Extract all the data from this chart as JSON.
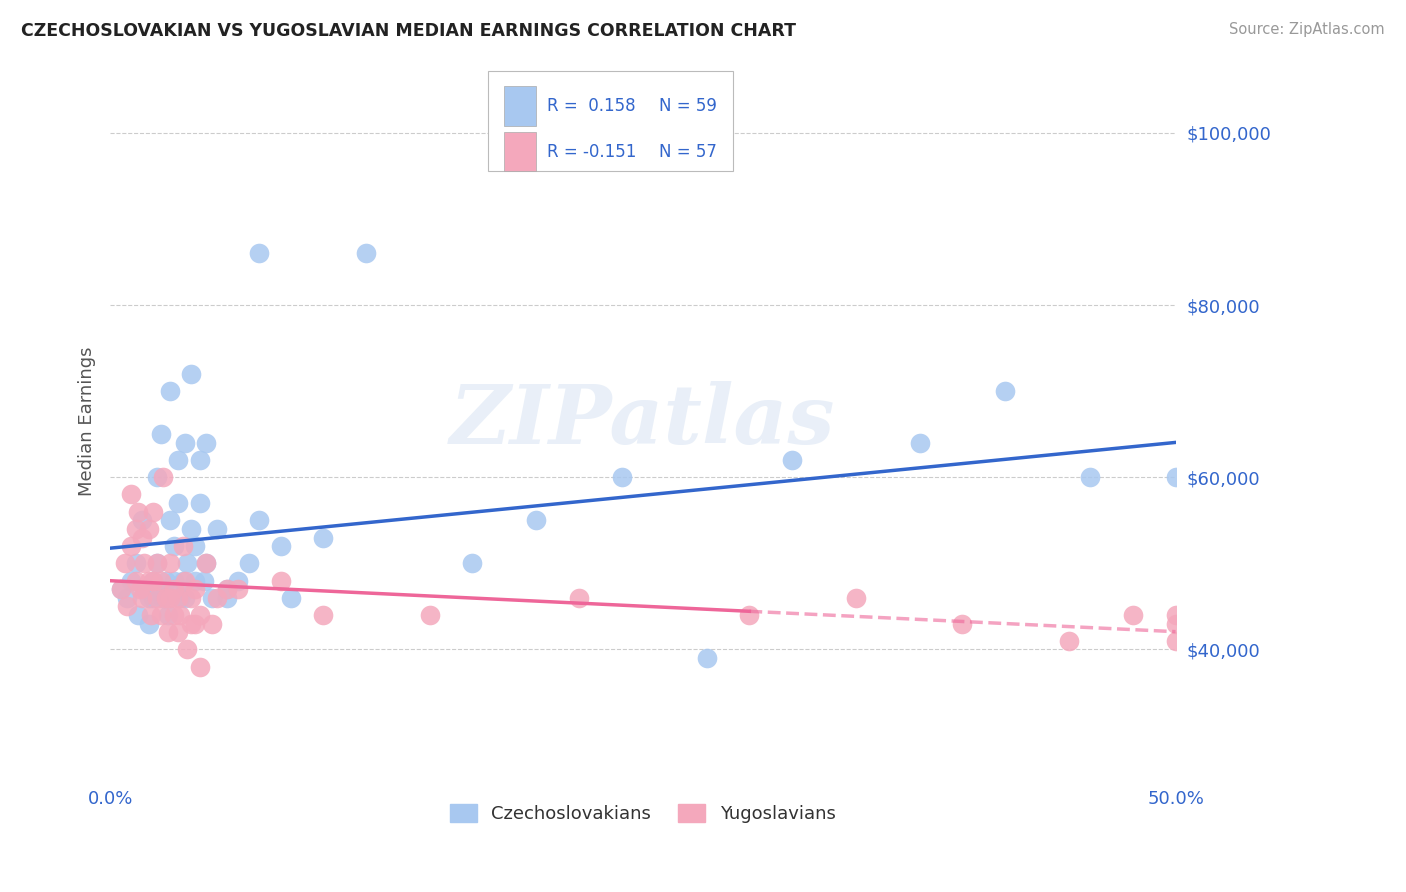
{
  "title": "CZECHOSLOVAKIAN VS YUGOSLAVIAN MEDIAN EARNINGS CORRELATION CHART",
  "source_text": "Source: ZipAtlas.com",
  "ylabel": "Median Earnings",
  "xlim": [
    0.0,
    0.5
  ],
  "ylim": [
    25000,
    108000
  ],
  "ytick_values": [
    40000,
    60000,
    80000,
    100000
  ],
  "ytick_labels": [
    "$40,000",
    "$60,000",
    "$80,000",
    "$100,000"
  ],
  "background_color": "#ffffff",
  "grid_color": "#cccccc",
  "watermark_text": "ZIPatlas",
  "legend_r1": "R =  0.158",
  "legend_n1": "N = 59",
  "legend_r2": "R = -0.151",
  "legend_n2": "N = 57",
  "legend_label1": "Czechoslovakians",
  "legend_label2": "Yugoslavians",
  "color_czech": "#a8c8f0",
  "color_yugo": "#f4a8bc",
  "color_trend_czech": "#3366cc",
  "color_trend_yugo": "#ee6699",
  "title_color": "#222222",
  "axis_label_color": "#555555",
  "tick_color_blue": "#3366cc",
  "source_color": "#999999",
  "czech_x": [
    0.005,
    0.008,
    0.01,
    0.012,
    0.013,
    0.015,
    0.016,
    0.018,
    0.018,
    0.02,
    0.02,
    0.022,
    0.022,
    0.023,
    0.024,
    0.025,
    0.026,
    0.027,
    0.028,
    0.028,
    0.03,
    0.03,
    0.032,
    0.032,
    0.033,
    0.034,
    0.035,
    0.035,
    0.036,
    0.038,
    0.038,
    0.04,
    0.04,
    0.042,
    0.042,
    0.044,
    0.045,
    0.045,
    0.048,
    0.05,
    0.055,
    0.055,
    0.06,
    0.065,
    0.07,
    0.07,
    0.08,
    0.085,
    0.1,
    0.12,
    0.17,
    0.2,
    0.24,
    0.28,
    0.32,
    0.38,
    0.42,
    0.46,
    0.5
  ],
  "czech_y": [
    47000,
    46000,
    48000,
    50000,
    44000,
    55000,
    47000,
    46000,
    43000,
    48000,
    46000,
    50000,
    60000,
    47000,
    65000,
    46000,
    48000,
    44000,
    70000,
    55000,
    52000,
    48000,
    62000,
    57000,
    46000,
    48000,
    64000,
    46000,
    50000,
    72000,
    54000,
    52000,
    48000,
    62000,
    57000,
    48000,
    64000,
    50000,
    46000,
    54000,
    46000,
    47000,
    48000,
    50000,
    55000,
    86000,
    52000,
    46000,
    53000,
    86000,
    50000,
    55000,
    60000,
    39000,
    62000,
    64000,
    70000,
    60000,
    60000
  ],
  "yugo_x": [
    0.005,
    0.007,
    0.008,
    0.01,
    0.01,
    0.012,
    0.012,
    0.013,
    0.014,
    0.015,
    0.015,
    0.016,
    0.018,
    0.018,
    0.019,
    0.02,
    0.02,
    0.022,
    0.022,
    0.024,
    0.024,
    0.025,
    0.026,
    0.027,
    0.028,
    0.028,
    0.03,
    0.03,
    0.032,
    0.032,
    0.033,
    0.034,
    0.035,
    0.036,
    0.038,
    0.038,
    0.04,
    0.04,
    0.042,
    0.042,
    0.045,
    0.048,
    0.05,
    0.055,
    0.06,
    0.08,
    0.1,
    0.15,
    0.22,
    0.3,
    0.35,
    0.4,
    0.45,
    0.48,
    0.5,
    0.5,
    0.5
  ],
  "yugo_y": [
    47000,
    50000,
    45000,
    58000,
    52000,
    54000,
    48000,
    56000,
    47000,
    53000,
    46000,
    50000,
    48000,
    54000,
    44000,
    56000,
    48000,
    50000,
    46000,
    48000,
    44000,
    60000,
    46000,
    42000,
    50000,
    46000,
    47000,
    44000,
    42000,
    46000,
    44000,
    52000,
    48000,
    40000,
    43000,
    46000,
    47000,
    43000,
    38000,
    44000,
    50000,
    43000,
    46000,
    47000,
    47000,
    48000,
    44000,
    44000,
    46000,
    44000,
    46000,
    43000,
    41000,
    44000,
    44000,
    43000,
    41000
  ]
}
